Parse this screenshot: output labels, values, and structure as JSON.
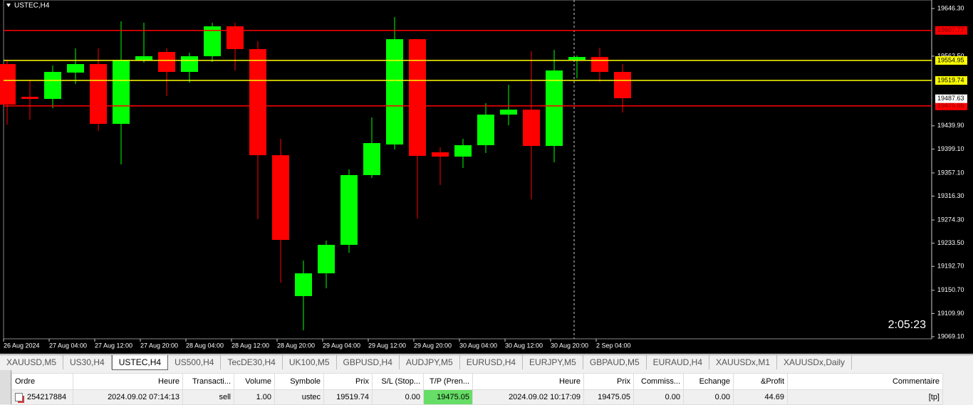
{
  "chart_data": {
    "type": "candlestick",
    "symbol_label": "USTEC,H4",
    "timer": "2:05:23",
    "bull_color": "#00ff00",
    "bear_color": "#ff0000",
    "ylim": [
      19065.3,
      19661.3
    ],
    "yticks": [
      {
        "value": 19646.3,
        "label": "19646.30"
      },
      {
        "value": 19562.5,
        "label": "19562.50"
      },
      {
        "value": 19439.9,
        "label": "19439.90"
      },
      {
        "value": 19399.1,
        "label": "19399.10"
      },
      {
        "value": 19357.1,
        "label": "19357.10"
      },
      {
        "value": 19316.3,
        "label": "19316.30"
      },
      {
        "value": 19274.3,
        "label": "19274.30"
      },
      {
        "value": 19233.5,
        "label": "19233.50"
      },
      {
        "value": 19192.7,
        "label": "19192.70"
      },
      {
        "value": 19150.7,
        "label": "19150.70"
      },
      {
        "value": 19109.9,
        "label": "19109.90"
      },
      {
        "value": 19069.1,
        "label": "19069.10"
      }
    ],
    "categories": [
      "26 Aug 2024",
      null,
      "27 Aug 04:00",
      null,
      "27 Aug 12:00",
      null,
      "27 Aug 20:00",
      null,
      "28 Aug 04:00",
      null,
      "28 Aug 12:00",
      null,
      "28 Aug 20:00",
      null,
      "29 Aug 04:00",
      null,
      "29 Aug 12:00",
      null,
      "29 Aug 20:00",
      null,
      "30 Aug 04:00",
      null,
      "30 Aug 12:00",
      null,
      "30 Aug 20:00",
      null,
      "2 Sep 04:00",
      null
    ],
    "open": [
      19548.6,
      19491.0,
      19487.3,
      19533.6,
      19548.6,
      19443.4,
      19554.9,
      19569.9,
      19534.8,
      19562.4,
      19615.0,
      19574.9,
      19388.3,
      19140.4,
      19180.5,
      19230.6,
      19353.3,
      19407.1,
      19592.4,
      19393.4,
      19385.8,
      19405.9,
      19459.7,
      19468.5,
      19404.6,
      19556.1,
      19561.1,
      19534.8
    ],
    "high": [
      19554.9,
      19521.1,
      19546.1,
      19576.2,
      19576.2,
      19623.7,
      19621.2,
      19576.2,
      19568.6,
      19621.2,
      19621.2,
      19588.7,
      19417.1,
      19203.0,
      19238.1,
      19363.3,
      19454.7,
      19631.3,
      19592.4,
      19402.1,
      19417.1,
      19479.7,
      19512.3,
      19571.1,
      19573.7,
      19563.6,
      19577.4,
      19548.6
    ],
    "low": [
      19442.2,
      19450.9,
      19471.0,
      19513.6,
      19430.9,
      19372.1,
      19551.1,
      19492.3,
      19516.1,
      19552.4,
      19537.3,
      19275.6,
      19164.2,
      19080.3,
      19154.2,
      19216.8,
      19348.3,
      19398.4,
      19276.9,
      19335.8,
      19365.8,
      19392.1,
      19441.0,
      19310.7,
      19375.8,
      19523.6,
      19517.3,
      19463.5
    ],
    "close": [
      19477.3,
      19487.3,
      19534.8,
      19548.6,
      19443.4,
      19556.1,
      19562.4,
      19534.8,
      19562.4,
      19615.0,
      19574.9,
      19388.3,
      19239.3,
      19180.5,
      19230.6,
      19353.3,
      19409.6,
      19592.4,
      19387.1,
      19385.8,
      19405.9,
      19459.7,
      19468.5,
      19404.6,
      19537.3,
      19561.1,
      19534.8,
      19488.5
    ],
    "levels": [
      {
        "value": 19607.77,
        "color": "#ff0000"
      },
      {
        "value": 19554.95,
        "color": "#ffff00"
      },
      {
        "value": 19519.74,
        "color": "#ffff00"
      },
      {
        "value": 19475.05,
        "color": "#ff0000"
      }
    ],
    "current_price": 19487.63
  },
  "tabs": [
    "XAUUSD,M5",
    "US30,H4",
    "USTEC,H4",
    "US500,H4",
    "TecDE30,H4",
    "UK100,M5",
    "GBPUSD,H4",
    "AUDJPY,M5",
    "EURUSD,H4",
    "EURJPY,M5",
    "GBPAUD,M5",
    "EURAUD,H4",
    "XAUUSDx,M1",
    "XAUUSDx,Daily"
  ],
  "active_tab": 2,
  "table": {
    "headers": [
      "Ordre",
      "Heure",
      "Transacti...",
      "Volume",
      "Symbole",
      "Prix",
      "S/L (Stop...",
      "T/P (Pren...",
      "Heure",
      "Prix",
      "Commiss...",
      "Echange",
      "&Profit",
      "Commentaire"
    ],
    "rows": [
      [
        "254217884",
        "2024.09.02 07:14:13",
        "sell",
        "1.00",
        "ustec",
        "19519.74",
        "0.00",
        "19475.05",
        "2024.09.02 10:17:09",
        "19475.05",
        "0.00",
        "0.00",
        "44.69",
        "[tp]"
      ]
    ]
  }
}
